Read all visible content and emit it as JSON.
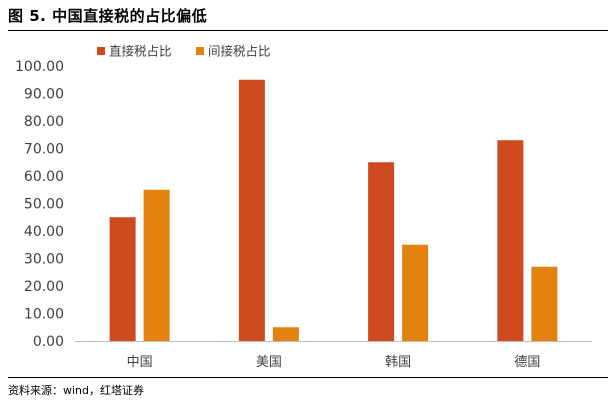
{
  "figure": {
    "title": "图 5.  中国直接税的占比偏低",
    "source": "资料来源：wind，红塔证券"
  },
  "chart_data": {
    "type": "bar",
    "categories": [
      "中国",
      "美国",
      "韩国",
      "德国"
    ],
    "series": [
      {
        "name": "直接税占比",
        "values": [
          45,
          95,
          65,
          73
        ],
        "color": "#cd4a1f"
      },
      {
        "name": "间接税占比",
        "values": [
          55,
          5,
          35,
          27
        ],
        "color": "#e4820f"
      }
    ],
    "ylim": [
      0,
      100
    ],
    "yticks": [
      "0.00",
      "10.00",
      "20.00",
      "30.00",
      "40.00",
      "50.00",
      "60.00",
      "70.00",
      "80.00",
      "90.00",
      "100.00"
    ],
    "legend": "top-left",
    "grid": false
  }
}
